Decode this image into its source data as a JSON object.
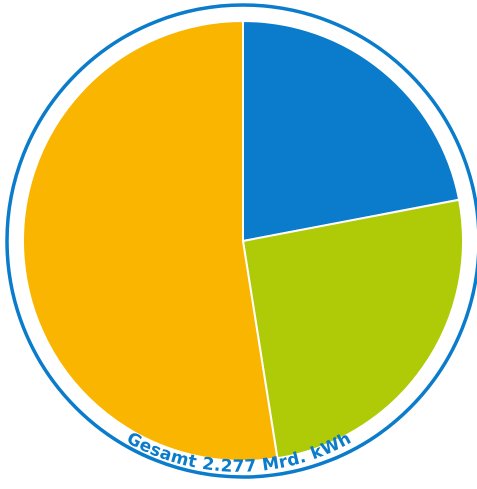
{
  "chart_data": {
    "type": "pie",
    "total_label": "Gesamt 2.277 Mrd. kWh",
    "slices": [
      {
        "share": 0.22,
        "color": "#0a7ccb"
      },
      {
        "share": 0.255,
        "color": "#afcb08"
      },
      {
        "share": 0.525,
        "color": "#f9b500"
      }
    ],
    "start_angle_deg": 0,
    "direction": "clockwise",
    "ring_color": "#0a7ccb",
    "separator_color": "#ffffff",
    "text_color": "#0a7ccb"
  }
}
